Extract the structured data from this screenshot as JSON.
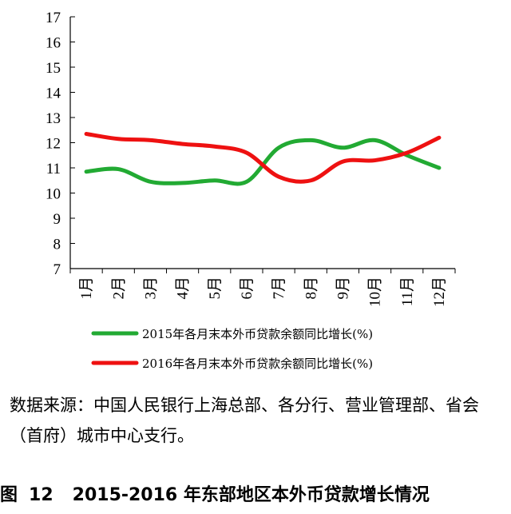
{
  "chart_data": {
    "type": "line",
    "categories": [
      "1月",
      "2月",
      "3月",
      "4月",
      "5月",
      "6月",
      "7月",
      "8月",
      "9月",
      "10月",
      "11月",
      "12月"
    ],
    "ylim": [
      7,
      17
    ],
    "yticks": [
      7,
      8,
      9,
      10,
      11,
      12,
      13,
      14,
      15,
      16,
      17
    ],
    "grid": false,
    "legend_position": "bottom",
    "series": [
      {
        "name": "2015年各月末本外币贷款余额同比增长(%)",
        "color": "#22aa33",
        "values": [
          10.85,
          10.95,
          10.45,
          10.4,
          10.5,
          10.45,
          11.8,
          12.1,
          11.8,
          12.1,
          11.5,
          11.0
        ]
      },
      {
        "name": "2016年各月末本外币贷款余额同比增长(%)",
        "color": "#ee1111",
        "values": [
          12.35,
          12.15,
          12.1,
          11.95,
          11.85,
          11.6,
          10.65,
          10.5,
          11.25,
          11.3,
          11.6,
          12.2
        ]
      }
    ]
  },
  "source_text": "数据来源：中国人民银行上海总部、各分行、营业管理部、省会（首府）城市中心支行。",
  "caption": {
    "label": "图",
    "number": "12",
    "title": "2015-2016 年东部地区本外币贷款增长情况"
  }
}
